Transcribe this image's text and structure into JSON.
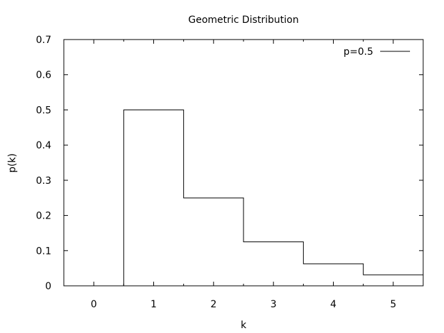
{
  "chart_data": {
    "type": "line",
    "title": "Geometric Distribution",
    "xlabel": "k",
    "ylabel": "p(k)",
    "xlim": [
      -0.5,
      5.5
    ],
    "ylim": [
      0,
      0.7
    ],
    "x_ticks": [
      0,
      1,
      2,
      3,
      4,
      5
    ],
    "x_tick_labels": [
      "0",
      "1",
      "2",
      "3",
      "4",
      "5"
    ],
    "y_ticks": [
      0,
      0.1,
      0.2,
      0.3,
      0.4,
      0.5,
      0.6,
      0.7
    ],
    "y_tick_labels": [
      "0",
      "0.1",
      "0.2",
      "0.3",
      "0.4",
      "0.5",
      "0.6",
      "0.7"
    ],
    "grid": false,
    "legend_position": "top-right",
    "series": [
      {
        "name": "p=0.5",
        "style": "steps",
        "color": "#000000",
        "x": [
          -0.5,
          0.5,
          0.5,
          1.5,
          1.5,
          2.5,
          2.5,
          3.5,
          3.5,
          4.5,
          4.5,
          5.5
        ],
        "y": [
          0,
          0,
          0.5,
          0.5,
          0.25,
          0.25,
          0.125,
          0.125,
          0.0625,
          0.0625,
          0.03125,
          0.03125
        ]
      }
    ]
  }
}
